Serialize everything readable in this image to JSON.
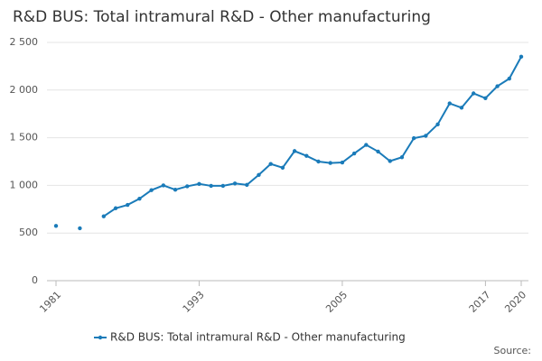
{
  "chart_data": {
    "type": "line",
    "title": "R&D BUS: Total intramural R&D - Other manufacturing",
    "x": [
      1981,
      1982,
      1983,
      1984,
      1985,
      1986,
      1987,
      1988,
      1989,
      1990,
      1991,
      1992,
      1993,
      1994,
      1995,
      1996,
      1997,
      1998,
      1999,
      2000,
      2001,
      2002,
      2003,
      2004,
      2005,
      2006,
      2007,
      2008,
      2009,
      2010,
      2011,
      2012,
      2013,
      2014,
      2015,
      2016,
      2017,
      2018,
      2019,
      2020
    ],
    "series": [
      {
        "name": "R&D BUS: Total intramural R&D - Other manufacturing",
        "color": "#1a7bb9",
        "values": [
          575,
          null,
          550,
          null,
          675,
          760,
          795,
          860,
          950,
          1000,
          955,
          990,
          1015,
          995,
          995,
          1020,
          1005,
          1110,
          1225,
          1185,
          1360,
          1310,
          1250,
          1235,
          1240,
          1335,
          1425,
          1355,
          1255,
          1295,
          1495,
          1520,
          1640,
          1860,
          1815,
          1965,
          1915,
          2040,
          2120,
          2350
        ]
      }
    ],
    "xlim": [
      1981,
      2020
    ],
    "xticks": [
      1981,
      1993,
      2005,
      2017,
      2020
    ],
    "ylim": [
      0,
      2500
    ],
    "yticks": [
      0,
      500,
      {
        "value": 1000,
        "label": "1 000"
      },
      {
        "value": 1500,
        "label": "1 500"
      },
      {
        "value": 2000,
        "label": "2 000"
      },
      {
        "value": 2500,
        "label": "2 500"
      }
    ],
    "grid": true,
    "legend": "bottom",
    "source": "Source:"
  }
}
